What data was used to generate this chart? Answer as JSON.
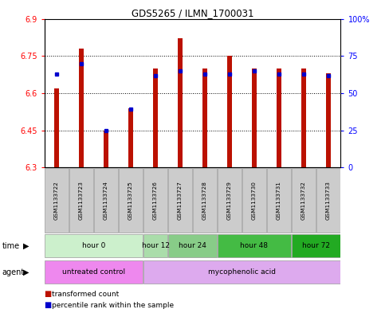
{
  "title": "GDS5265 / ILMN_1700031",
  "samples": [
    "GSM1133722",
    "GSM1133723",
    "GSM1133724",
    "GSM1133725",
    "GSM1133726",
    "GSM1133727",
    "GSM1133728",
    "GSM1133729",
    "GSM1133730",
    "GSM1133731",
    "GSM1133732",
    "GSM1133733"
  ],
  "transformed_count": [
    6.62,
    6.78,
    6.45,
    6.54,
    6.7,
    6.82,
    6.7,
    6.75,
    6.7,
    6.7,
    6.7,
    6.68
  ],
  "percentile_rank": [
    63,
    70,
    25,
    39,
    62,
    65,
    63,
    63,
    65,
    63,
    63,
    62
  ],
  "y_min": 6.3,
  "y_max": 6.9,
  "y_ticks": [
    6.3,
    6.45,
    6.6,
    6.75,
    6.9
  ],
  "y_tick_labels": [
    "6.3",
    "6.45",
    "6.6",
    "6.75",
    "6.9"
  ],
  "y2_ticks": [
    0,
    25,
    50,
    75,
    100
  ],
  "y2_tick_labels": [
    "0",
    "25",
    "50",
    "75",
    "100%"
  ],
  "time_groups": [
    {
      "label": "hour 0",
      "start": 0,
      "end": 3,
      "color": "#ccf0cc"
    },
    {
      "label": "hour 12",
      "start": 4,
      "end": 4,
      "color": "#aaddaa"
    },
    {
      "label": "hour 24",
      "start": 5,
      "end": 6,
      "color": "#88cc88"
    },
    {
      "label": "hour 48",
      "start": 7,
      "end": 9,
      "color": "#44bb44"
    },
    {
      "label": "hour 72",
      "start": 10,
      "end": 11,
      "color": "#22aa22"
    }
  ],
  "agent_groups": [
    {
      "label": "untreated control",
      "start": 0,
      "end": 3,
      "color": "#ee88ee"
    },
    {
      "label": "mycophenolic acid",
      "start": 4,
      "end": 11,
      "color": "#ddaaee"
    }
  ],
  "bar_color": "#bb1100",
  "blue_marker_color": "#0000cc",
  "background_color": "#ffffff",
  "sample_bg_color": "#cccccc",
  "legend_red_label": "transformed count",
  "legend_blue_label": "percentile rank within the sample"
}
